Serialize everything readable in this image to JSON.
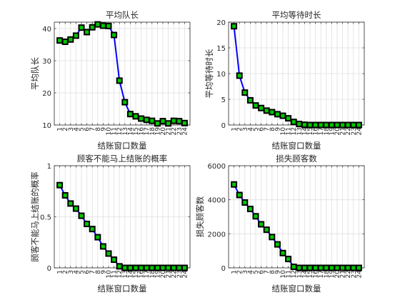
{
  "chart_data": [
    {
      "type": "line",
      "title": "平均队长",
      "xlabel": "结账窗口数量",
      "ylabel": "平均队长",
      "x": [
        1,
        2,
        3,
        4,
        5,
        6,
        7,
        8,
        9,
        10,
        11,
        12,
        13,
        14,
        15,
        16,
        17,
        18,
        19,
        20,
        21,
        22,
        23,
        24
      ],
      "values": [
        36.3,
        35.9,
        36.6,
        37.8,
        40.3,
        38.9,
        40.4,
        41.3,
        40.9,
        40.8,
        38.0,
        23.8,
        17.1,
        13.4,
        12.7,
        12.0,
        11.6,
        11.3,
        10.5,
        11.2,
        10.5,
        11.3,
        11.2,
        10.6
      ],
      "xlim": [
        0,
        25
      ],
      "ylim": [
        10,
        42
      ],
      "yticks": [
        10,
        20,
        30,
        40
      ],
      "xticks": [
        1,
        2,
        3,
        4,
        5,
        6,
        7,
        8,
        9,
        10,
        11,
        12,
        13,
        14,
        15,
        16,
        17,
        18,
        19,
        20,
        21,
        22,
        23,
        24
      ],
      "grid": true,
      "line_color": "#0000ff",
      "marker_face": "#00c800",
      "marker_edge": "#000000"
    },
    {
      "type": "line",
      "title": "平均等待时长",
      "xlabel": "结账窗口数量",
      "ylabel": "平均等待时长",
      "x": [
        1,
        2,
        3,
        4,
        5,
        6,
        7,
        8,
        9,
        10,
        11,
        12,
        13,
        14,
        15,
        16,
        17,
        18,
        19,
        20,
        21,
        22,
        23,
        24
      ],
      "values": [
        19.2,
        9.6,
        6.3,
        4.8,
        3.8,
        3.3,
        2.8,
        2.5,
        2.1,
        1.8,
        1.3,
        0.6,
        0.2,
        0.05,
        0,
        0,
        0,
        0,
        0,
        0,
        0,
        0,
        0,
        0
      ],
      "xlim": [
        0,
        25
      ],
      "ylim": [
        0,
        20
      ],
      "yticks": [
        0,
        5,
        10,
        15,
        20
      ],
      "xticks": [
        1,
        2,
        3,
        4,
        5,
        6,
        7,
        8,
        9,
        10,
        11,
        12,
        13,
        14,
        15,
        16,
        17,
        18,
        19,
        20,
        21,
        22,
        23,
        24
      ],
      "grid": true,
      "line_color": "#0000ff",
      "marker_face": "#00c800",
      "marker_edge": "#000000"
    },
    {
      "type": "line",
      "title": "顾客不能马上结账的概率",
      "xlabel": "结账窗口数量",
      "ylabel": "顾客不能马上结账的概率",
      "x": [
        1,
        2,
        3,
        4,
        5,
        6,
        7,
        8,
        9,
        10,
        11,
        12,
        13,
        14,
        15,
        16,
        17,
        18,
        19,
        20,
        21,
        22,
        23,
        24
      ],
      "values": [
        0.81,
        0.71,
        0.63,
        0.58,
        0.51,
        0.43,
        0.38,
        0.3,
        0.21,
        0.14,
        0.08,
        0.015,
        0,
        0,
        0,
        0,
        0,
        0,
        0,
        0,
        0,
        0,
        0,
        0
      ],
      "xlim": [
        0,
        25
      ],
      "ylim": [
        0,
        1
      ],
      "yticks": [
        0,
        0.5,
        1
      ],
      "xticks": [
        1,
        2,
        3,
        4,
        5,
        6,
        7,
        8,
        9,
        10,
        11,
        12,
        13,
        14,
        15,
        16,
        17,
        18,
        19,
        20,
        21,
        22,
        23,
        24
      ],
      "grid": true,
      "line_color": "#0000ff",
      "marker_face": "#00c800",
      "marker_edge": "#000000"
    },
    {
      "type": "line",
      "title": "损失顾客数",
      "xlabel": "结账窗口数量",
      "ylabel": "损失顾客数",
      "x": [
        1,
        2,
        3,
        4,
        5,
        6,
        7,
        8,
        9,
        10,
        11,
        12,
        13,
        14,
        15,
        16,
        17,
        18,
        19,
        20,
        21,
        22,
        23,
        24
      ],
      "values": [
        4900,
        4280,
        3840,
        3460,
        3030,
        2560,
        2240,
        1810,
        1380,
        870,
        520,
        60,
        0,
        0,
        0,
        0,
        0,
        0,
        0,
        0,
        0,
        0,
        0,
        0
      ],
      "xlim": [
        0,
        25
      ],
      "ylim": [
        0,
        6000
      ],
      "yticks": [
        0,
        2000,
        4000,
        6000
      ],
      "xticks": [
        1,
        2,
        3,
        4,
        5,
        6,
        7,
        8,
        9,
        10,
        11,
        12,
        13,
        14,
        15,
        16,
        17,
        18,
        19,
        20,
        21,
        22,
        23,
        24
      ],
      "grid": true,
      "line_color": "#0000ff",
      "marker_face": "#00c800",
      "marker_edge": "#000000"
    }
  ]
}
